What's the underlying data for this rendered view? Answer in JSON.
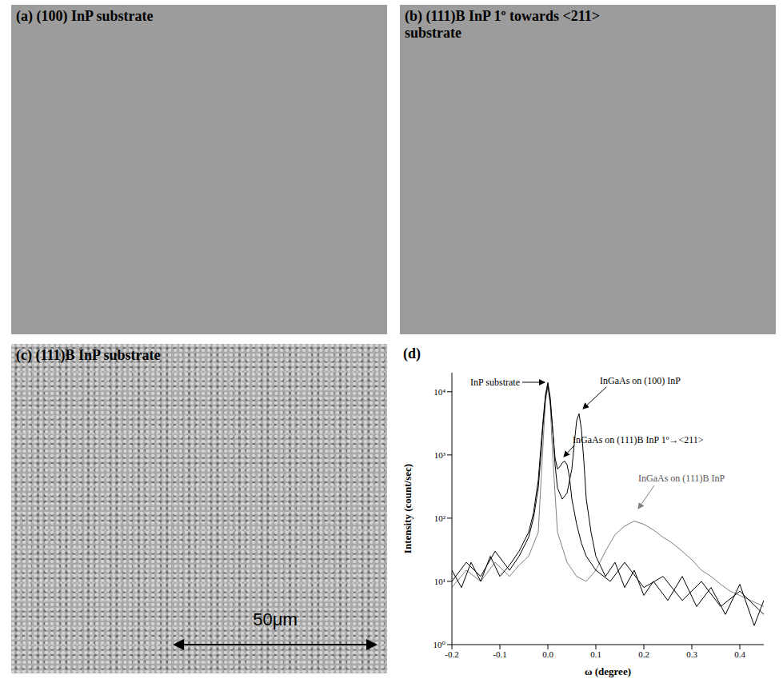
{
  "panels": [
    {
      "title": "(a) (100) InP substrate"
    },
    {
      "title": "(b) (111)B InP 1º towards <211> substrate"
    },
    {
      "title": "(c) (111)B InP substrate",
      "scale_bar": "50μm"
    }
  ],
  "chart_data": {
    "type": "line",
    "title": "(d)",
    "x_label": "ω (degree)",
    "y_label": "Intensity (count/sec)",
    "log": "y",
    "grid": false,
    "xlim": [
      -0.2,
      0.45
    ],
    "xticks": [
      -0.2,
      -0.1,
      {
        "value": 0,
        "label": "0.0"
      },
      0.1,
      0.2,
      0.3,
      0.4
    ],
    "ylim": [
      1,
      20000
    ],
    "yticks": [
      {
        "value": 1,
        "label": "10⁰"
      },
      {
        "value": 10,
        "label": "10¹"
      },
      {
        "value": 100,
        "label": "10²"
      },
      {
        "value": 1000,
        "label": "10³"
      },
      {
        "value": 10000,
        "label": "10⁴"
      }
    ],
    "annotations": [
      {
        "text": "InP substrate"
      },
      {
        "text": "InGaAs on (100) InP"
      },
      {
        "text": "InGaAs on (111)B InP 1º→<211>"
      },
      {
        "text": "InGaAs on (111)B InP"
      }
    ],
    "series": [
      {
        "name": "InGaAs on (111)B InP",
        "color": "#808080",
        "x": [
          -0.2,
          -0.17,
          -0.14,
          -0.11,
          -0.08,
          -0.06,
          -0.04,
          -0.02,
          -0.01,
          -0.005,
          0,
          0.005,
          0.01,
          0.02,
          0.04,
          0.06,
          0.08,
          0.1,
          0.12,
          0.14,
          0.16,
          0.18,
          0.2,
          0.22,
          0.24,
          0.26,
          0.28,
          0.3,
          0.32,
          0.34,
          0.36,
          0.38,
          0.4,
          0.45
        ],
        "values": [
          8,
          15,
          10,
          20,
          12,
          18,
          25,
          60,
          1500,
          7000,
          12000,
          6000,
          1000,
          60,
          20,
          12,
          10,
          15,
          30,
          55,
          75,
          90,
          80,
          65,
          50,
          40,
          30,
          22,
          15,
          12,
          9,
          7,
          6,
          4
        ]
      },
      {
        "name": "InGaAs on (100) InP",
        "color": "#000000",
        "x": [
          -0.2,
          -0.18,
          -0.16,
          -0.14,
          -0.12,
          -0.1,
          -0.08,
          -0.06,
          -0.04,
          -0.03,
          -0.02,
          -0.015,
          -0.01,
          -0.005,
          0,
          0.005,
          0.01,
          0.015,
          0.02,
          0.03,
          0.04,
          0.05,
          0.055,
          0.06,
          0.065,
          0.07,
          0.075,
          0.08,
          0.09,
          0.1,
          0.12,
          0.14,
          0.16,
          0.18,
          0.2,
          0.22,
          0.25,
          0.28,
          0.31,
          0.34,
          0.37,
          0.4,
          0.43,
          0.45
        ],
        "values": [
          15,
          8,
          20,
          10,
          25,
          12,
          18,
          30,
          60,
          120,
          400,
          1200,
          3500,
          9000,
          14000,
          8000,
          2500,
          700,
          300,
          200,
          250,
          600,
          1500,
          3500,
          4500,
          2500,
          800,
          200,
          60,
          25,
          12,
          20,
          8,
          15,
          6,
          10,
          5,
          12,
          4,
          8,
          3,
          9,
          2,
          5
        ]
      },
      {
        "name": "InGaAs on (111)B InP 1º→<211>",
        "color": "#000000",
        "x": [
          -0.2,
          -0.17,
          -0.14,
          -0.11,
          -0.08,
          -0.06,
          -0.04,
          -0.03,
          -0.02,
          -0.015,
          -0.01,
          -0.005,
          0,
          0.005,
          0.01,
          0.015,
          0.02,
          0.025,
          0.03,
          0.035,
          0.04,
          0.045,
          0.05,
          0.06,
          0.07,
          0.08,
          0.1,
          0.13,
          0.16,
          0.2,
          0.24,
          0.28,
          0.32,
          0.36,
          0.4,
          0.45
        ],
        "values": [
          10,
          20,
          12,
          30,
          15,
          25,
          50,
          100,
          300,
          900,
          3000,
          8000,
          13000,
          7000,
          2500,
          900,
          600,
          650,
          750,
          800,
          700,
          450,
          200,
          80,
          40,
          25,
          15,
          10,
          20,
          8,
          12,
          5,
          10,
          4,
          7,
          3
        ]
      }
    ]
  }
}
